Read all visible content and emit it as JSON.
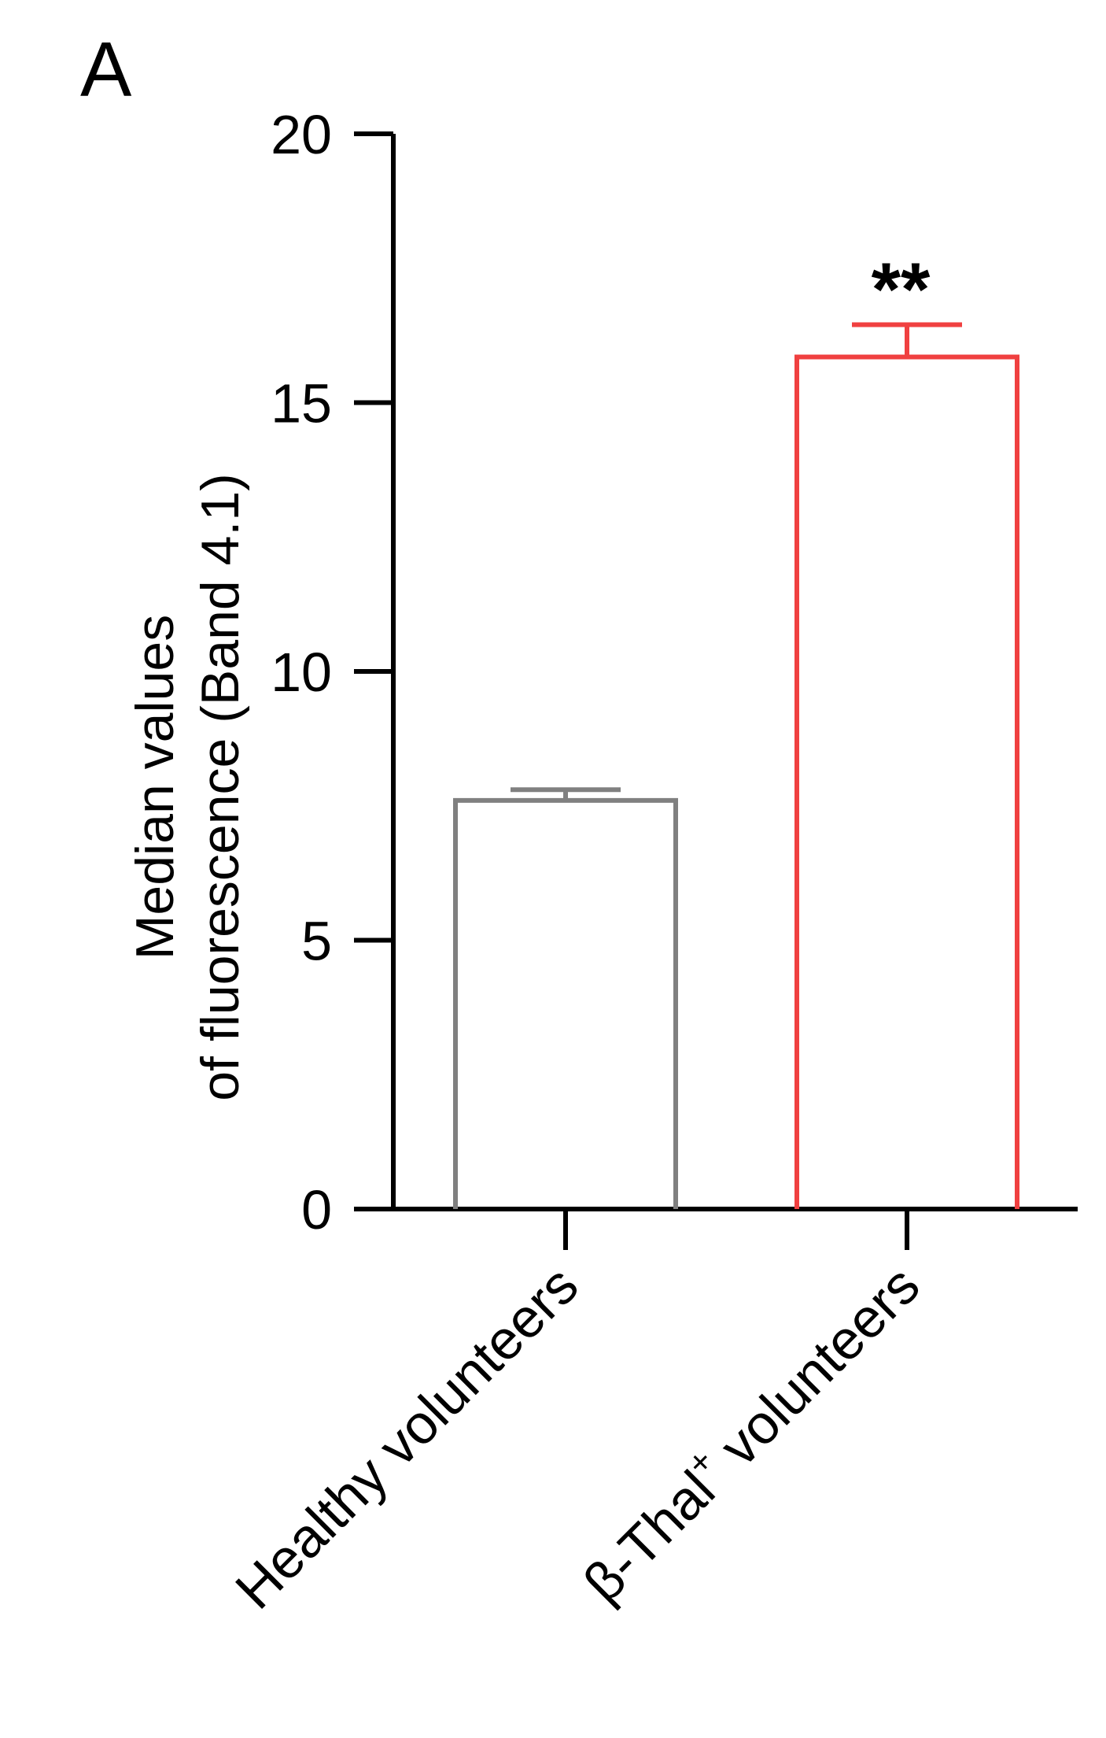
{
  "panel_label": "A",
  "chart_data": {
    "type": "bar",
    "ylabel_line1": "Median values",
    "ylabel_line2": "of fluorescence (Band 4.1)",
    "ylim": [
      0,
      20
    ],
    "yticks": [
      "0",
      "5",
      "10",
      "15",
      "20"
    ],
    "ytick_values": [
      0,
      5,
      10,
      15,
      20
    ],
    "categories": [
      "Healthy volunteers",
      "β-Thal⁺ volunteers"
    ],
    "category_parts": [
      {
        "main": "Healthy volunteers",
        "sup": ""
      },
      {
        "main": "β-Thal",
        "sup": "+",
        "rest": " volunteers"
      }
    ],
    "values": [
      7.6,
      15.85
    ],
    "errors": [
      0.2,
      0.6
    ],
    "significance": [
      "",
      "**"
    ],
    "colors": [
      "#808080",
      "#f04040"
    ],
    "grid": false,
    "legend": "none"
  }
}
